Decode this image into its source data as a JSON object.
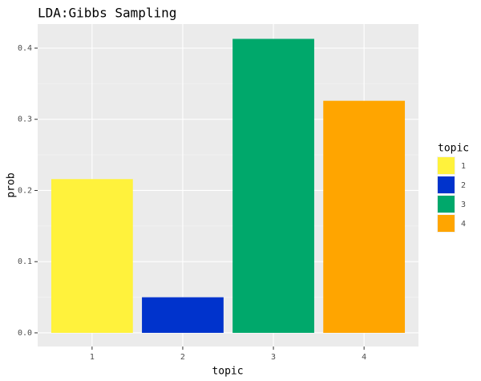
{
  "chart_data": {
    "type": "bar",
    "title": "LDA:Gibbs Sampling",
    "x_label": "topic",
    "y_label": "prob",
    "categories": [
      "1",
      "2",
      "3",
      "4"
    ],
    "values": [
      0.216,
      0.05,
      0.413,
      0.326
    ],
    "colors": [
      "#fff23c",
      "#0033cc",
      "#00a86b",
      "#ffa500"
    ],
    "legend_title": "topic",
    "ylim": [
      -0.0192,
      0.4338
    ],
    "yticks": [
      {
        "value": 0,
        "label": "0.0"
      },
      0.1,
      0.2,
      0.3,
      0.4
    ],
    "grid": true
  }
}
